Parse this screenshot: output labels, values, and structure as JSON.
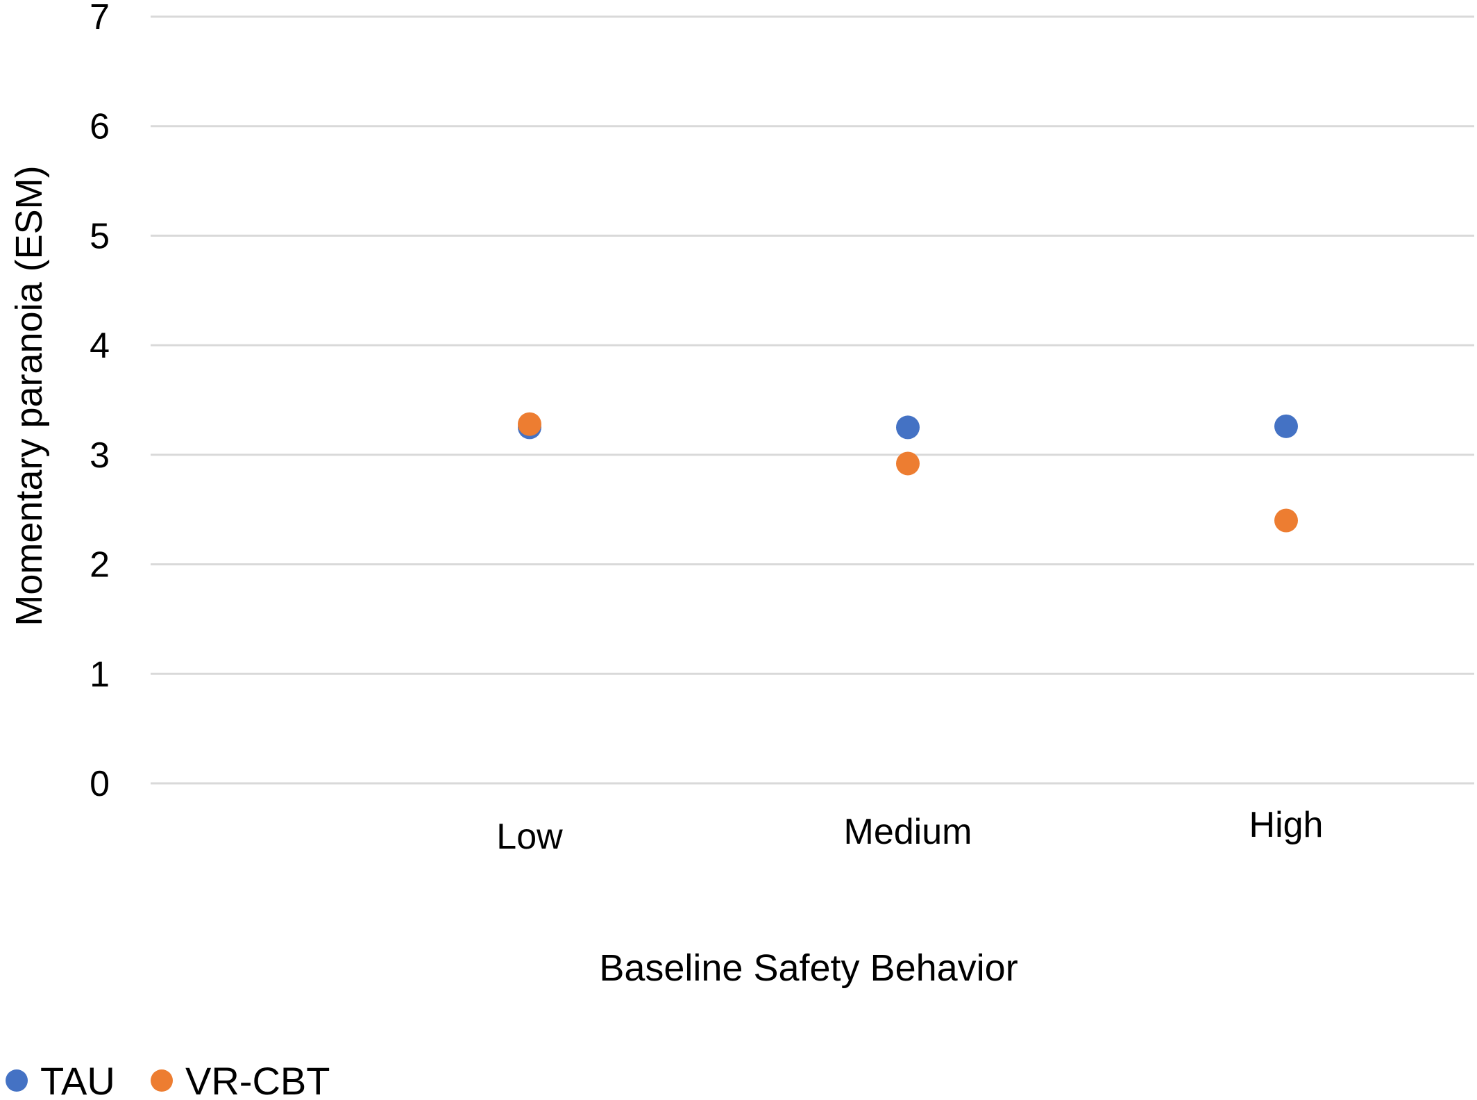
{
  "chart_data": {
    "type": "scatter",
    "title": "",
    "xlabel": "Baseline Safety Behavior",
    "ylabel": "Momentary paranoia (ESM)",
    "categories": [
      "Low",
      "Medium",
      "High"
    ],
    "ylim": [
      0,
      7
    ],
    "yticks": [
      "0",
      "1",
      "2",
      "3",
      "4",
      "5",
      "6",
      "7"
    ],
    "grid": true,
    "legend_position": "bottom-left",
    "series": [
      {
        "name": "TAU",
        "color": "#4472C4",
        "values": [
          3.25,
          3.25,
          3.26
        ]
      },
      {
        "name": "VR-CBT",
        "color": "#ED7D31",
        "values": [
          3.28,
          2.92,
          2.4
        ]
      }
    ]
  }
}
